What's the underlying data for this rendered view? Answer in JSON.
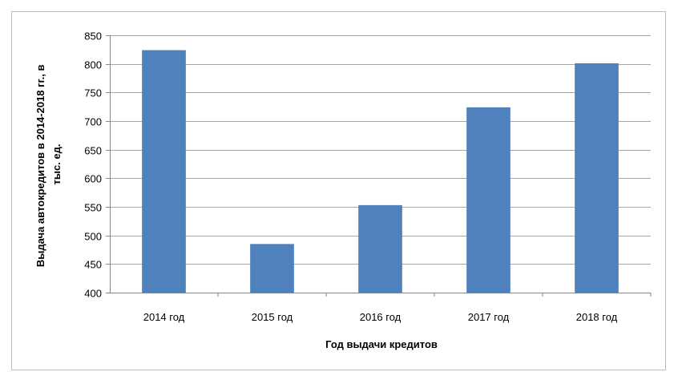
{
  "chart_data": {
    "type": "bar",
    "categories": [
      "2014 год",
      "2015 год",
      "2016 год",
      "2017 год",
      "2018 год"
    ],
    "series": [
      {
        "values": [
          824,
          485,
          553,
          724,
          801
        ],
        "color": "#4f81bd"
      }
    ],
    "xlabel": "Год выдачи кредитов",
    "ylabel_lines": [
      "Выдача автокредитов в 2014-2018 гг., в",
      "тыс. ед."
    ],
    "ylim": [
      400,
      850
    ],
    "yticks": [
      400,
      450,
      500,
      550,
      600,
      650,
      700,
      750,
      800,
      850
    ],
    "grid": true,
    "legend": false,
    "colors": {
      "bar": "#4f81bd",
      "grid": "#a6a6a6",
      "axis": "#868686"
    }
  }
}
